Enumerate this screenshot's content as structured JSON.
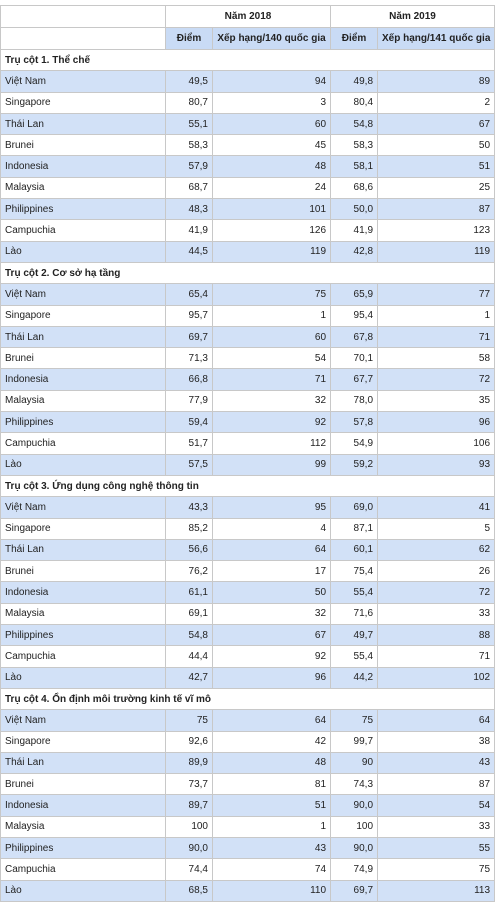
{
  "header": {
    "years": [
      "Năm 2018",
      "Năm 2019"
    ],
    "columns": [
      "Điểm",
      "Xếp hạng/140 quốc gia",
      "Điểm",
      "Xếp hạng/141 quốc gia"
    ]
  },
  "sections": [
    {
      "title": "Trụ cột 1. Thể chế",
      "rows": [
        [
          "Việt Nam",
          "49,5",
          "94",
          "49,8",
          "89"
        ],
        [
          "Singapore",
          "80,7",
          "3",
          "80,4",
          "2"
        ],
        [
          "Thái Lan",
          "55,1",
          "60",
          "54,8",
          "67"
        ],
        [
          "Brunei",
          "58,3",
          "45",
          "58,3",
          "50"
        ],
        [
          "Indonesia",
          "57,9",
          "48",
          "58,1",
          "51"
        ],
        [
          "Malaysia",
          "68,7",
          "24",
          "68,6",
          "25"
        ],
        [
          "Philippines",
          "48,3",
          "101",
          "50,0",
          "87"
        ],
        [
          "Campuchia",
          "41,9",
          "126",
          "41,9",
          "123"
        ],
        [
          "Lào",
          "44,5",
          "119",
          "42,8",
          "119"
        ]
      ]
    },
    {
      "title": "Trụ cột 2. Cơ sở hạ tầng",
      "rows": [
        [
          "Việt Nam",
          "65,4",
          "75",
          "65,9",
          "77"
        ],
        [
          "Singapore",
          "95,7",
          "1",
          "95,4",
          "1"
        ],
        [
          "Thái Lan",
          "69,7",
          "60",
          "67,8",
          "71"
        ],
        [
          "Brunei",
          "71,3",
          "54",
          "70,1",
          "58"
        ],
        [
          "Indonesia",
          "66,8",
          "71",
          "67,7",
          "72"
        ],
        [
          "Malaysia",
          "77,9",
          "32",
          "78,0",
          "35"
        ],
        [
          "Philippines",
          "59,4",
          "92",
          "57,8",
          "96"
        ],
        [
          "Campuchia",
          "51,7",
          "112",
          "54,9",
          "106"
        ],
        [
          "Lào",
          "57,5",
          "99",
          "59,2",
          "93"
        ]
      ]
    },
    {
      "title": "Trụ cột 3. Ứng dụng công nghệ thông tin",
      "rows": [
        [
          "Việt Nam",
          "43,3",
          "95",
          "69,0",
          "41"
        ],
        [
          "Singapore",
          "85,2",
          "4",
          "87,1",
          "5"
        ],
        [
          "Thái Lan",
          "56,6",
          "64",
          "60,1",
          "62"
        ],
        [
          "Brunei",
          "76,2",
          "17",
          "75,4",
          "26"
        ],
        [
          "Indonesia",
          "61,1",
          "50",
          "55,4",
          "72"
        ],
        [
          "Malaysia",
          "69,1",
          "32",
          "71,6",
          "33"
        ],
        [
          "Philippines",
          "54,8",
          "67",
          "49,7",
          "88"
        ],
        [
          "Campuchia",
          "44,4",
          "92",
          "55,4",
          "71"
        ],
        [
          "Lào",
          "42,7",
          "96",
          "44,2",
          "102"
        ]
      ]
    },
    {
      "title": "Trụ cột 4. Ổn định môi trường kinh tế vĩ mô",
      "rows": [
        [
          "Việt Nam",
          "75",
          "64",
          "75",
          "64"
        ],
        [
          "Singapore",
          "92,6",
          "42",
          "99,7",
          "38"
        ],
        [
          "Thái Lan",
          "89,9",
          "48",
          "90",
          "43"
        ],
        [
          "Brunei",
          "73,7",
          "81",
          "74,3",
          "87"
        ],
        [
          "Indonesia",
          "89,7",
          "51",
          "90,0",
          "54"
        ],
        [
          "Malaysia",
          "100",
          "1",
          "100",
          "33"
        ],
        [
          "Philippines",
          "90,0",
          "43",
          "90,0",
          "55"
        ],
        [
          "Campuchia",
          "74,4",
          "74",
          "74,9",
          "75"
        ],
        [
          "Lào",
          "68,5",
          "110",
          "69,7",
          "113"
        ]
      ]
    }
  ]
}
